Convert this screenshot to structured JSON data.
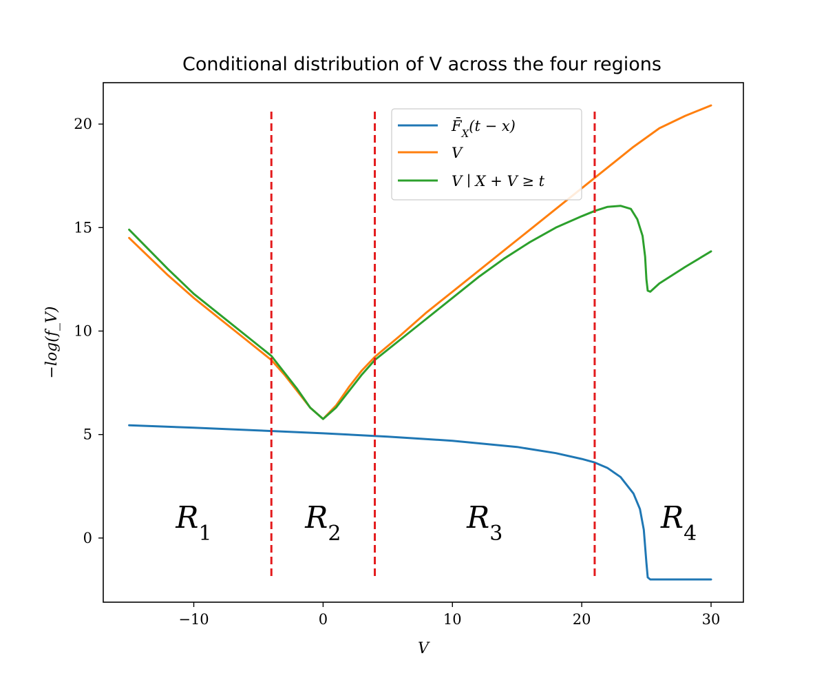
{
  "chart_data": {
    "type": "line",
    "title": "Conditional distribution of V across the four regions",
    "xlabel": "V",
    "ylabel": "−log(f_V)",
    "xlim": [
      -17,
      32.5
    ],
    "ylim": [
      -3.1,
      22
    ],
    "xticks": [
      -10,
      0,
      10,
      20,
      30
    ],
    "xtick_labels": [
      "−10",
      "0",
      "10",
      "20",
      "30"
    ],
    "yticks": [
      0,
      5,
      10,
      15,
      20
    ],
    "ytick_labels": [
      "0",
      "5",
      "10",
      "15",
      "20"
    ],
    "grid": false,
    "legend_position": "top-center",
    "series": [
      {
        "name": "F̄_X(t − x)",
        "color": "#1f77b4",
        "x": [
          -15,
          -10,
          -5,
          0,
          5,
          10,
          15,
          18,
          20,
          21,
          22,
          23,
          24,
          24.5,
          24.8,
          25,
          25.1,
          25.3,
          26,
          28,
          30
        ],
        "y": [
          5.45,
          5.33,
          5.2,
          5.06,
          4.9,
          4.7,
          4.4,
          4.1,
          3.82,
          3.65,
          3.38,
          2.95,
          2.15,
          1.4,
          0.4,
          -1.2,
          -1.9,
          -2.0,
          -2.0,
          -2.0,
          -2.0
        ]
      },
      {
        "name": "V",
        "color": "#ff7f0e",
        "x": [
          -15,
          -12,
          -10,
          -8,
          -6,
          -4,
          -3,
          -2,
          -1,
          0,
          1,
          2,
          3,
          4,
          6,
          8,
          10,
          12,
          14,
          16,
          18,
          20,
          21,
          22,
          24,
          26,
          28,
          30
        ],
        "y": [
          14.5,
          12.7,
          11.6,
          10.6,
          9.6,
          8.6,
          7.9,
          7.1,
          6.3,
          5.75,
          6.4,
          7.3,
          8.1,
          8.75,
          9.8,
          10.9,
          11.9,
          12.9,
          13.9,
          14.9,
          15.9,
          16.9,
          17.4,
          17.9,
          18.9,
          19.8,
          20.4,
          20.9
        ]
      },
      {
        "name": "V ∣ X + V ≥ t",
        "color": "#2ca02c",
        "x": [
          -15,
          -12,
          -10,
          -8,
          -6,
          -4,
          -3,
          -2,
          -1,
          0,
          1,
          2,
          3,
          4,
          6,
          8,
          10,
          12,
          14,
          16,
          18,
          20,
          21,
          22,
          23,
          23.8,
          24.3,
          24.7,
          24.9,
          25.0,
          25.1,
          25.3,
          26,
          28,
          30
        ],
        "y": [
          14.9,
          13.0,
          11.8,
          10.8,
          9.8,
          8.8,
          8.0,
          7.2,
          6.3,
          5.75,
          6.3,
          7.1,
          7.9,
          8.6,
          9.6,
          10.6,
          11.6,
          12.6,
          13.5,
          14.3,
          15.0,
          15.55,
          15.8,
          16.0,
          16.05,
          15.9,
          15.4,
          14.6,
          13.6,
          12.5,
          11.95,
          11.9,
          12.3,
          13.1,
          13.85
        ]
      }
    ],
    "vlines": {
      "x": [
        -4,
        4,
        21
      ],
      "color": "#e31a1c",
      "style": "dashed",
      "ymin": -2,
      "ymax": 20.6
    },
    "annotations": [
      {
        "sub": "1",
        "x": -10,
        "y": 0.5
      },
      {
        "sub": "2",
        "x": 0,
        "y": 0.5
      },
      {
        "sub": "3",
        "x": 12.5,
        "y": 0.5
      },
      {
        "sub": "4",
        "x": 27.5,
        "y": 0.5
      }
    ],
    "annotation_base": "R"
  },
  "legend": [
    {
      "main": "F̄",
      "sub": "X",
      "rest": "(t − x)"
    },
    {
      "main": "V",
      "sub": "",
      "rest": ""
    },
    {
      "main": "V ∣ X + V ≥ t",
      "sub": "",
      "rest": ""
    }
  ]
}
